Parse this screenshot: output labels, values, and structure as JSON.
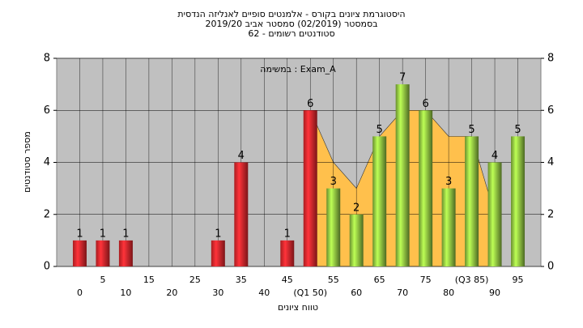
{
  "chart_data": {
    "type": "bar",
    "title": [
      "היסטוגרמת ציונים בקורס - אלמנטים סופיים לאנליזה הנדסית",
      "בסמסטר (02/2019) סמסטר אביב 2019/20",
      "סטודנטים רשומים - 62"
    ],
    "annotation": "במשימה : Exam_A",
    "x_label": "טווח ציונים",
    "y_label": "מספר סטודנטים",
    "x": [
      0,
      5,
      10,
      15,
      20,
      25,
      30,
      35,
      40,
      45,
      50,
      55,
      60,
      65,
      70,
      75,
      80,
      85,
      90,
      95
    ],
    "series": [
      {
        "values": [
          1,
          1,
          1,
          0,
          0,
          0,
          1,
          4,
          0,
          1,
          6,
          3,
          2,
          5,
          7,
          6,
          3,
          5,
          4,
          5
        ],
        "colors": [
          "#e0262b",
          "#e0262b",
          "#e0262b",
          "#e0262b",
          "#e0262b",
          "#e0262b",
          "#e0262b",
          "#e0262b",
          "#e0262b",
          "#e0262b",
          "#e0262b",
          "#8cbf3f",
          "#8cbf3f",
          "#8cbf3f",
          "#8cbf3f",
          "#8cbf3f",
          "#8cbf3f",
          "#8cbf3f",
          "#8cbf3f",
          "#8cbf3f"
        ]
      }
    ],
    "area": {
      "color": "#ffc04c",
      "x": [
        50,
        55,
        60,
        65,
        70,
        75,
        80,
        85,
        90
      ],
      "values": [
        6,
        4,
        3,
        5,
        6,
        6,
        5,
        5,
        2
      ]
    },
    "xlim": [
      -5,
      100
    ],
    "xticks": [
      0,
      5,
      10,
      15,
      20,
      25,
      30,
      35,
      40,
      45,
      {
        "value": 50,
        "label": "(Q1 50)"
      },
      55,
      60,
      65,
      70,
      75,
      80,
      {
        "value": 85,
        "label": "(Q3 85)"
      },
      90,
      95
    ],
    "ylim": [
      0,
      8
    ],
    "yticks": [
      0,
      2,
      4,
      6,
      8
    ],
    "grid": true,
    "plot_color": "#c0c0c0"
  }
}
